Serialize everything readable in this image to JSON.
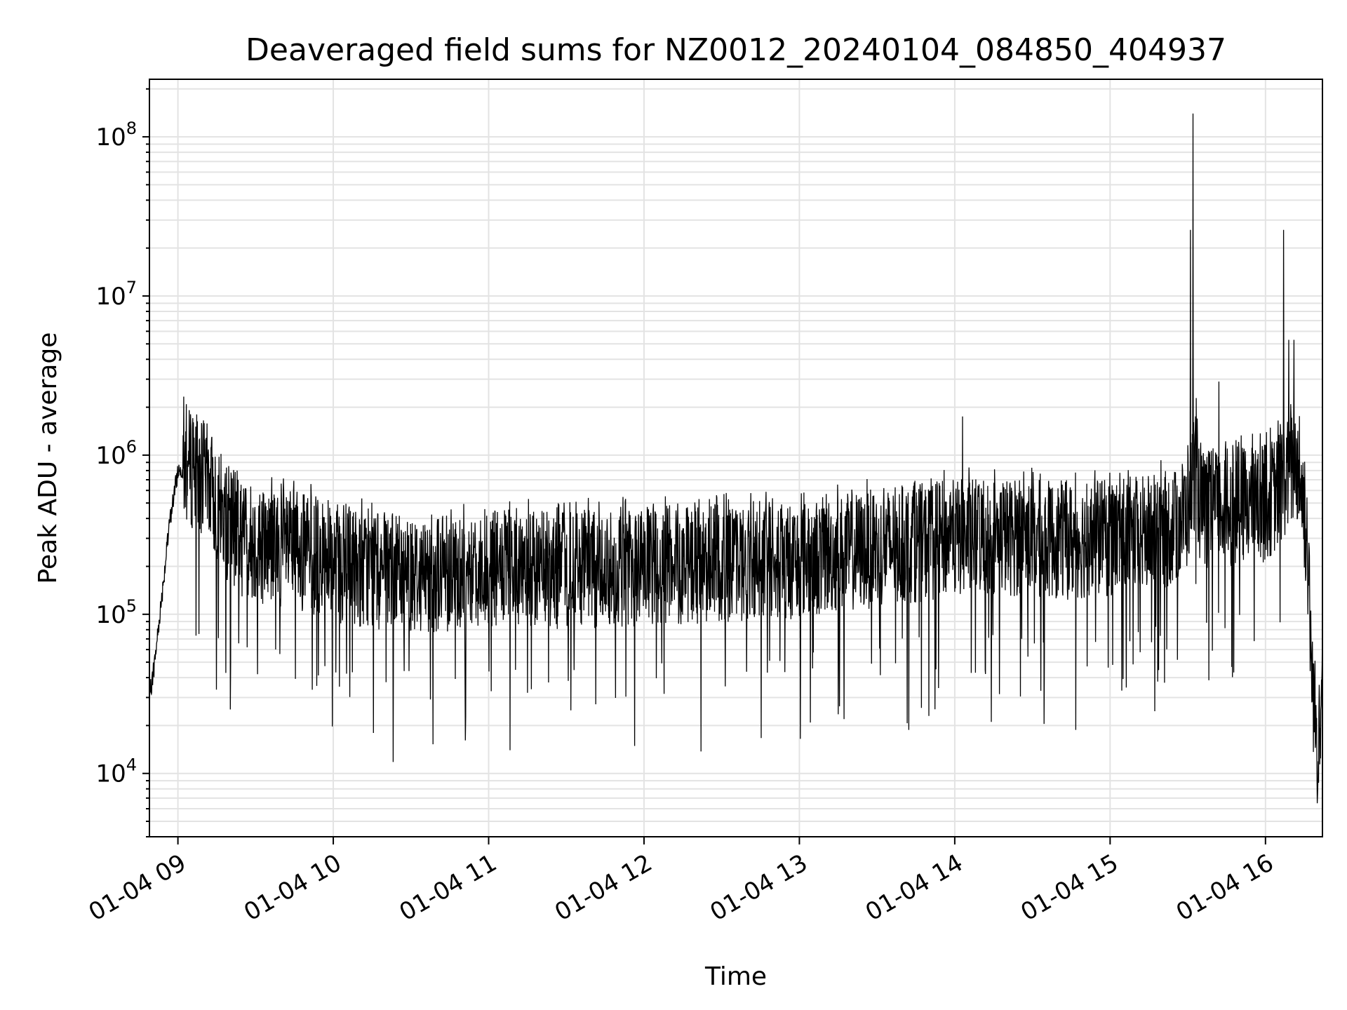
{
  "chart_data": {
    "type": "line",
    "title": "Deaveraged field sums for NZ0012_20240104_084850_404937",
    "xlabel": "Time",
    "ylabel": "Peak ADU - average",
    "x_tick_labels": [
      "01-04 09",
      "01-04 10",
      "01-04 11",
      "01-04 12",
      "01-04 13",
      "01-04 14",
      "01-04 15",
      "01-04 16"
    ],
    "xlim": [
      "2024-01-04 08:49",
      "2024-01-04 16:22"
    ],
    "yscale": "log",
    "ylim": [
      4000,
      230000000
    ],
    "y_tick_values": [
      10000,
      100000,
      1000000,
      10000000,
      100000000
    ],
    "y_tick_exponents": [
      "4",
      "5",
      "6",
      "7",
      "8"
    ],
    "grid": true,
    "series": [
      {
        "color": "#000000",
        "x": [
          "2024-01-04 08:49",
          "2024-01-04 08:51",
          "2024-01-04 08:53",
          "2024-01-04 08:55",
          "2024-01-04 08:57",
          "2024-01-04 09:00",
          "2024-01-04 09:03",
          "2024-01-04 09:06",
          "2024-01-04 09:09",
          "2024-01-04 09:12",
          "2024-01-04 09:15",
          "2024-01-04 09:18",
          "2024-01-04 09:21",
          "2024-01-04 09:25",
          "2024-01-04 09:30",
          "2024-01-04 09:35",
          "2024-01-04 09:40",
          "2024-01-04 09:45",
          "2024-01-04 09:50",
          "2024-01-04 10:00",
          "2024-01-04 10:15",
          "2024-01-04 10:30",
          "2024-01-04 10:45",
          "2024-01-04 11:00",
          "2024-01-04 11:15",
          "2024-01-04 11:30",
          "2024-01-04 11:45",
          "2024-01-04 12:00",
          "2024-01-04 12:15",
          "2024-01-04 12:30",
          "2024-01-04 12:45",
          "2024-01-04 13:00",
          "2024-01-04 13:15",
          "2024-01-04 13:30",
          "2024-01-04 13:45",
          "2024-01-04 14:00",
          "2024-01-04 14:15",
          "2024-01-04 14:30",
          "2024-01-04 14:45",
          "2024-01-04 15:00",
          "2024-01-04 15:15",
          "2024-01-04 15:25",
          "2024-01-04 15:30",
          "2024-01-04 15:33",
          "2024-01-04 15:35",
          "2024-01-04 15:40",
          "2024-01-04 15:45",
          "2024-01-04 15:50",
          "2024-01-04 15:55",
          "2024-01-04 16:00",
          "2024-01-04 16:05",
          "2024-01-04 16:08",
          "2024-01-04 16:10",
          "2024-01-04 16:12",
          "2024-01-04 16:14",
          "2024-01-04 16:16",
          "2024-01-04 16:18",
          "2024-01-04 16:20",
          "2024-01-04 16:22"
        ],
        "y": [
          30000,
          50000,
          100000,
          200000,
          400000,
          800000,
          850000,
          800000,
          750000,
          650000,
          500000,
          400000,
          350000,
          300000,
          280000,
          270000,
          260000,
          250000,
          240000,
          210000,
          190000,
          180000,
          185000,
          190000,
          190000,
          190000,
          195000,
          200000,
          205000,
          210000,
          215000,
          220000,
          240000,
          260000,
          280000,
          300000,
          310000,
          300000,
          290000,
          300000,
          320000,
          350000,
          450000,
          900000,
          450000,
          450000,
          470000,
          480000,
          490000,
          500000,
          600000,
          750000,
          800000,
          900000,
          600000,
          300000,
          40000,
          15000,
          40000
        ]
      }
    ],
    "annotated_spikes": [
      {
        "x": "2024-01-04 15:32",
        "y": 140000000
      },
      {
        "x": "2024-01-04 15:31",
        "y": 26000000
      },
      {
        "x": "2024-01-04 16:07",
        "y": 26000000
      },
      {
        "x": "2024-01-04 16:09",
        "y": 5300000
      },
      {
        "x": "2024-01-04 16:11",
        "y": 5300000
      },
      {
        "x": "2024-01-04 15:42",
        "y": 2900000
      },
      {
        "x": "2024-01-04 14:03",
        "y": 1750000
      },
      {
        "x": "2024-01-04 16:20",
        "y": 6500
      }
    ],
    "noise": {
      "upper_factor": 2.3,
      "lower_factor": 0.45,
      "dip_floor": 11000,
      "seed": 7
    }
  }
}
